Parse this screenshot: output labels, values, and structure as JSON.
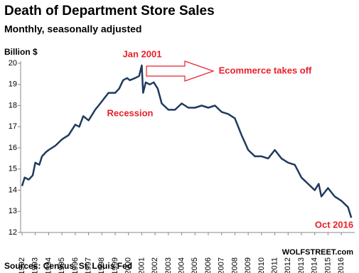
{
  "chart_data": {
    "type": "line",
    "title": "Death of Department Store Sales",
    "subtitle": "Monthly, seasonally adjusted",
    "y_label": "Billion $",
    "source": "Sources: Census, St. Louis Fed",
    "credit": "WOLFSTREET.com",
    "annotations": [
      "Jan 2001",
      "Ecommerce takes off",
      "Recession",
      "Oct 2016"
    ],
    "color": "#1f3a5f",
    "x": [
      1992.0,
      1992.2,
      1992.5,
      1992.8,
      1993.0,
      1993.3,
      1993.5,
      1993.8,
      1994.0,
      1994.5,
      1995.0,
      1995.5,
      1996.0,
      1996.3,
      1996.6,
      1997.0,
      1997.5,
      1998.0,
      1998.5,
      1999.0,
      1999.3,
      1999.6,
      1999.9,
      2000.1,
      2000.5,
      2000.8,
      2001.0,
      2001.1,
      2001.3,
      2001.6,
      2001.9,
      2002.2,
      2002.5,
      2003.0,
      2003.5,
      2004.0,
      2004.5,
      2005.0,
      2005.5,
      2006.0,
      2006.5,
      2007.0,
      2007.5,
      2008.0,
      2008.5,
      2009.0,
      2009.5,
      2010.0,
      2010.5,
      2011.0,
      2011.5,
      2012.0,
      2012.5,
      2013.0,
      2013.5,
      2014.0,
      2014.3,
      2014.5,
      2015.0,
      2015.5,
      2016.0,
      2016.5,
      2016.75
    ],
    "values": [
      14.2,
      14.6,
      14.5,
      14.7,
      15.3,
      15.2,
      15.6,
      15.8,
      15.9,
      16.1,
      16.4,
      16.6,
      17.1,
      17.0,
      17.5,
      17.3,
      17.8,
      18.2,
      18.6,
      18.6,
      18.8,
      19.2,
      19.3,
      19.2,
      19.3,
      19.4,
      19.9,
      18.6,
      19.1,
      19.0,
      19.1,
      18.8,
      18.1,
      17.8,
      17.8,
      18.1,
      17.9,
      17.9,
      18.0,
      17.9,
      18.0,
      17.7,
      17.6,
      17.4,
      16.6,
      15.9,
      15.6,
      15.6,
      15.5,
      15.9,
      15.5,
      15.3,
      15.2,
      14.6,
      14.3,
      14.0,
      14.3,
      13.7,
      14.1,
      13.7,
      13.5,
      13.2,
      12.7
    ],
    "xlim": [
      1992,
      2016.9
    ],
    "ylim": [
      12,
      20
    ],
    "yticks": [
      12,
      13,
      14,
      15,
      16,
      17,
      18,
      19,
      20
    ],
    "xticks": [
      1992,
      1993,
      1994,
      1995,
      1996,
      1997,
      1998,
      1999,
      2000,
      2001,
      2002,
      2003,
      2004,
      2005,
      2006,
      2007,
      2008,
      2009,
      2010,
      2011,
      2012,
      2013,
      2014,
      2015,
      2016
    ]
  }
}
